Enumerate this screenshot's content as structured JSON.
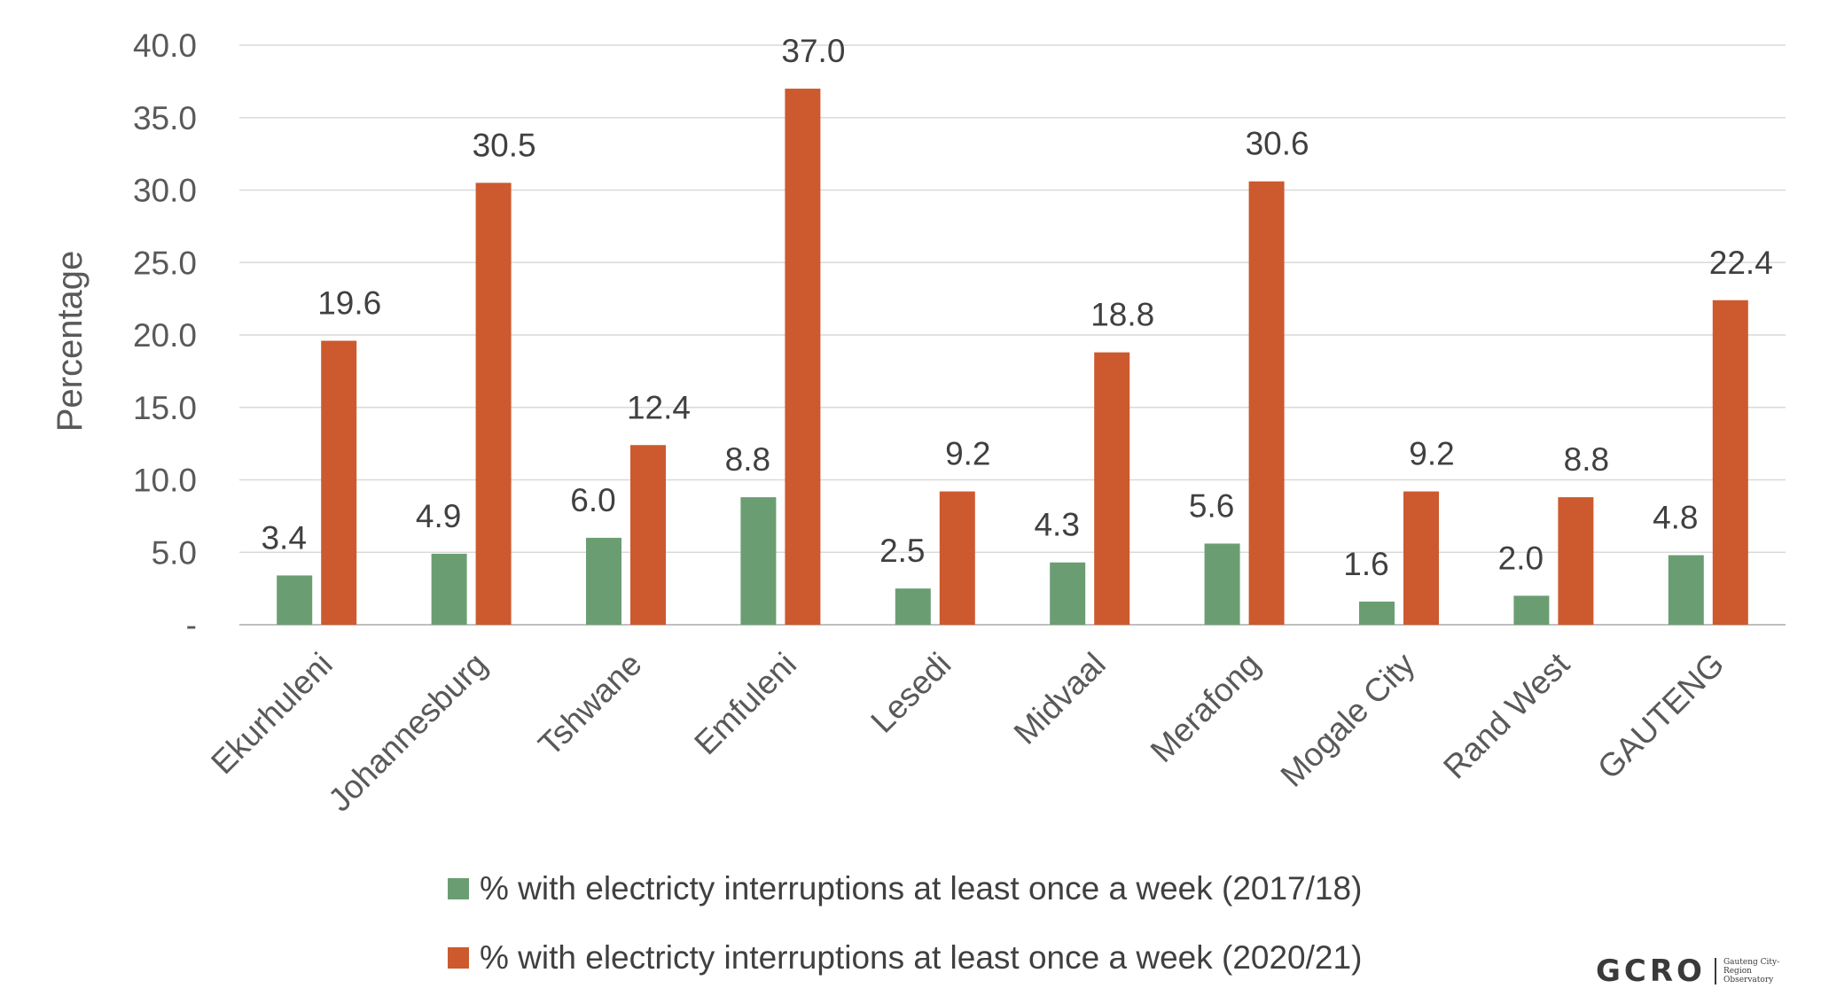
{
  "chart_data": {
    "type": "bar",
    "ylabel": "Percentage",
    "ylim": [
      0,
      40
    ],
    "yticks": [
      "-",
      "5.0",
      "10.0",
      "15.0",
      "20.0",
      "25.0",
      "30.0",
      "35.0",
      "40.0"
    ],
    "grid": true,
    "legend_position": "bottom",
    "categories": [
      "Ekurhuleni",
      "Johannesburg",
      "Tshwane",
      "Emfuleni",
      "Lesedi",
      "Midvaal",
      "Merafong",
      "Mogale City",
      "Rand West",
      "GAUTENG"
    ],
    "series": [
      {
        "name": "% with electricty interruptions at least once a week (2017/18)",
        "color": "#6a9e72",
        "values": [
          3.4,
          4.9,
          6.0,
          8.8,
          2.5,
          4.3,
          5.6,
          1.6,
          2.0,
          4.8
        ],
        "labels": [
          "3.4",
          "4.9",
          "6.0",
          "8.8",
          "2.5",
          "4.3",
          "5.6",
          "1.6",
          "2.0",
          "4.8"
        ]
      },
      {
        "name": "% with electricty interruptions at least once a week (2020/21)",
        "color": "#cc5a2e",
        "values": [
          19.6,
          30.5,
          12.4,
          37.0,
          9.2,
          18.8,
          30.6,
          9.2,
          8.8,
          22.4
        ],
        "labels": [
          "19.6",
          "30.5",
          "12.4",
          "37.0",
          "9.2",
          "18.8",
          "30.6",
          "9.2",
          "8.8",
          "22.4"
        ]
      }
    ]
  },
  "logo": {
    "mark": "GCRO",
    "subtitle": "Gauteng City-Region Observatory"
  }
}
